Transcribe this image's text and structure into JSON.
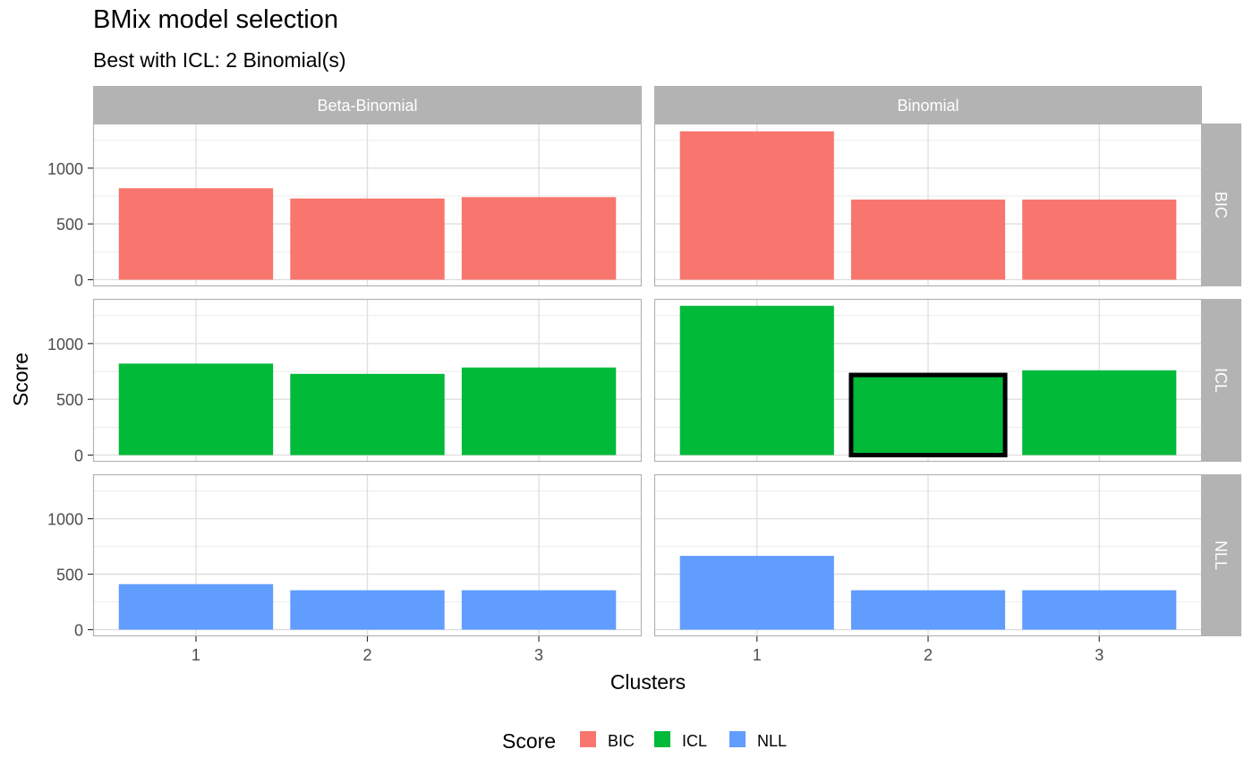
{
  "chart_data": {
    "type": "bar",
    "title": "BMix model selection",
    "subtitle": "Best with ICL: 2 Binomial(s)",
    "xlabel": "Clusters",
    "ylabel": "Score",
    "categories": [
      "1",
      "2",
      "3"
    ],
    "yticks": [
      0,
      500,
      1000
    ],
    "ylim": [
      -60,
      1400
    ],
    "grid": true,
    "legend": {
      "title": "Score",
      "position": "bottom",
      "entries": [
        {
          "label": "BIC",
          "color": "#F8766D"
        },
        {
          "label": "ICL",
          "color": "#00BA38"
        },
        {
          "label": "NLL",
          "color": "#619CFF"
        }
      ]
    },
    "facet_columns": [
      "Beta-Binomial",
      "Binomial"
    ],
    "facet_rows": [
      "BIC",
      "ICL",
      "NLL"
    ],
    "panels": [
      {
        "column": "Beta-Binomial",
        "row": "BIC",
        "values": [
          820,
          728,
          740
        ]
      },
      {
        "column": "Binomial",
        "row": "BIC",
        "values": [
          1330,
          718,
          718
        ]
      },
      {
        "column": "Beta-Binomial",
        "row": "ICL",
        "values": [
          820,
          728,
          785
        ]
      },
      {
        "column": "Binomial",
        "row": "ICL",
        "values": [
          1338,
          718,
          760
        ]
      },
      {
        "column": "Beta-Binomial",
        "row": "NLL",
        "values": [
          410,
          355,
          355
        ]
      },
      {
        "column": "Binomial",
        "row": "NLL",
        "values": [
          665,
          355,
          355
        ]
      }
    ],
    "highlight": {
      "column": "Binomial",
      "row": "ICL",
      "category": "2"
    }
  }
}
